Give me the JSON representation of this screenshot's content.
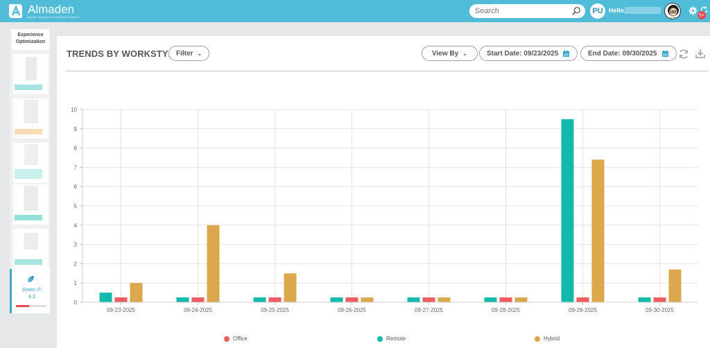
{
  "app": {
    "brand": "Almaden",
    "tagline": "Anytime anywhere Excellence Assured",
    "search_placeholder": "Search",
    "user_initials": "PU",
    "greeting": "Hello,",
    "notification_count": "5+"
  },
  "sidebar": {
    "header": "Experience Optimization",
    "green_it_label": "Green IT:",
    "green_it_value": "4.3",
    "green_it_progress": 0.43
  },
  "panel": {
    "title": "TRENDS BY WORKSTYLE",
    "filter_label": "Filter",
    "view_by_label": "View By",
    "start_date_label": "Start Date: 09/23/2025",
    "end_date_label": "End Date: 09/30/2025"
  },
  "colors": {
    "topbar": "#50bcd8",
    "office": "#ef5b5f",
    "remote": "#13b9aa",
    "hybrid": "#dba84e"
  },
  "chart_data": {
    "type": "bar",
    "categories": [
      "09-23-2025",
      "09-24-2025",
      "09-25-2025",
      "09-26-2025",
      "09-27-2025",
      "09-28-2025",
      "09-29-2025",
      "09-30-2025"
    ],
    "series": [
      {
        "name": "Remote",
        "values": [
          0.5,
          0.25,
          0.25,
          0.25,
          0.25,
          0.25,
          9.5,
          0.25
        ]
      },
      {
        "name": "Office",
        "values": [
          0.25,
          0.25,
          0.25,
          0.25,
          0.25,
          0.25,
          0.25,
          0.25
        ]
      },
      {
        "name": "Hybrid",
        "values": [
          1,
          4,
          1.5,
          0.25,
          0.25,
          0.25,
          7.4,
          1.7
        ]
      }
    ],
    "legend": [
      "Office",
      "Remote",
      "Hybrid"
    ],
    "yticks": [
      "0",
      "1",
      "2",
      "3",
      "4",
      "5",
      "6",
      "7",
      "8",
      "9",
      "10"
    ],
    "ylim": [
      0,
      10
    ],
    "grid": true,
    "legend_position": "bottom"
  }
}
